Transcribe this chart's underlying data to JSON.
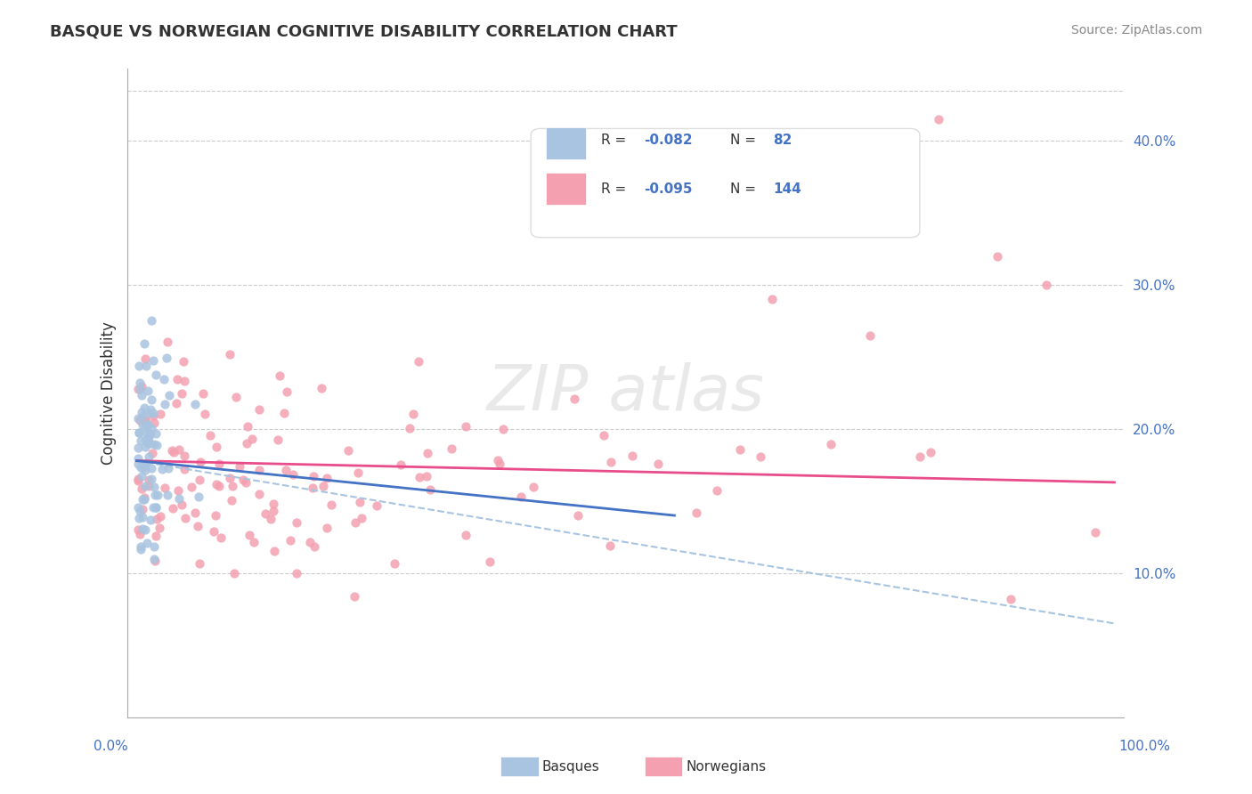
{
  "title": "BASQUE VS NORWEGIAN COGNITIVE DISABILITY CORRELATION CHART",
  "source": "Source: ZipAtlas.com",
  "ylabel": "Cognitive Disability",
  "legend_r1": "R = -0.082",
  "legend_n1": "N =  82",
  "legend_r2": "R = -0.095",
  "legend_n2": "N = 144",
  "basque_color": "#a8c4e0",
  "norwegian_color": "#f4a0b0",
  "basque_line_color": "#4472C4",
  "norwegian_line_color": "#E84C8B",
  "dashed_line_color": "#a8c4e0",
  "background_color": "#ffffff",
  "accent_color": "#4472C4"
}
